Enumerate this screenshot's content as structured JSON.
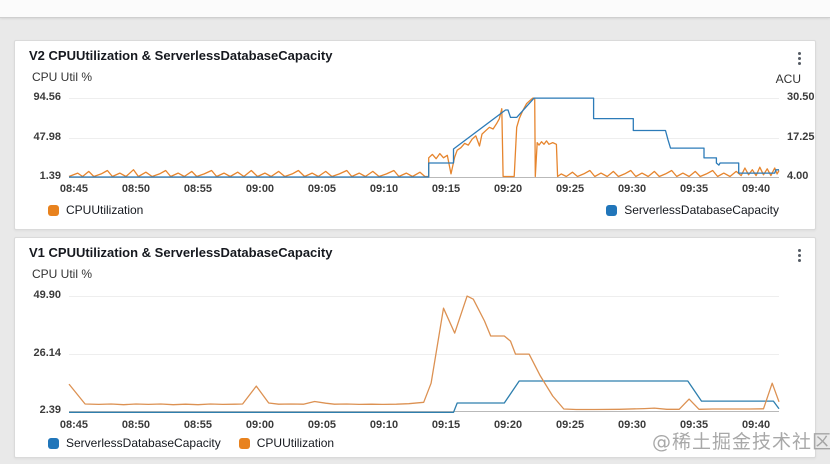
{
  "watermark": {
    "text": "@稀土掘金技术社区",
    "color": "#9a9a9a"
  },
  "colors": {
    "orange": "#e6852e",
    "blue": "#2c7bb8",
    "grid": "#eeeeee",
    "axis_line": "#b9b9b9"
  },
  "chart_data": [
    {
      "type": "line",
      "title": "V2 CPUUtilization & ServerlessDatabaseCapacity",
      "legend_layout": "split",
      "xlim": [
        -0.4,
        56.85
      ],
      "x_ticks": [
        {
          "t": 0,
          "label": "08:45"
        },
        {
          "t": 5,
          "label": "08:50"
        },
        {
          "t": 10,
          "label": "08:55"
        },
        {
          "t": 15,
          "label": "09:00"
        },
        {
          "t": 20,
          "label": "09:05"
        },
        {
          "t": 25,
          "label": "09:10"
        },
        {
          "t": 30,
          "label": "09:15"
        },
        {
          "t": 35,
          "label": "09:20"
        },
        {
          "t": 40,
          "label": "09:25"
        },
        {
          "t": 45,
          "label": "09:30"
        },
        {
          "t": 50,
          "label": "09:35"
        },
        {
          "t": 55,
          "label": "09:40"
        }
      ],
      "left_axis": {
        "label": "CPU Util %",
        "ticks": [
          "94.56",
          "47.98",
          "1.39"
        ],
        "lim": [
          0.2,
          100.5
        ]
      },
      "right_axis": {
        "label": "ACU",
        "ticks": [
          "30.50",
          "17.25",
          "4.00"
        ],
        "lim": [
          3.66,
          32.2
        ]
      },
      "legend": [
        {
          "label": "CPUUtilization",
          "color": "#e8821e"
        },
        {
          "label": "ServerlessDatabaseCapacity",
          "color": "#2176ba"
        }
      ],
      "series": [
        {
          "name": "CPUUtilization",
          "axis": "left",
          "color": "#e6852e",
          "points": [
            [
              -0.4,
              2
            ],
            [
              0.3,
              6
            ],
            [
              0.7,
              2
            ],
            [
              1.2,
              8
            ],
            [
              1.6,
              2
            ],
            [
              2.2,
              5
            ],
            [
              2.7,
              9
            ],
            [
              3.1,
              2
            ],
            [
              3.7,
              6
            ],
            [
              4.2,
              2
            ],
            [
              4.8,
              10
            ],
            [
              5.2,
              2
            ],
            [
              5.8,
              7
            ],
            [
              6.3,
              2
            ],
            [
              6.9,
              5
            ],
            [
              7.4,
              9
            ],
            [
              7.8,
              2
            ],
            [
              8.4,
              6
            ],
            [
              8.9,
              2
            ],
            [
              9.5,
              8
            ],
            [
              9.9,
              2
            ],
            [
              10.5,
              5
            ],
            [
              11.1,
              9
            ],
            [
              11.5,
              2
            ],
            [
              12.1,
              6
            ],
            [
              12.6,
              2
            ],
            [
              13.2,
              7
            ],
            [
              13.7,
              2
            ],
            [
              14.3,
              9
            ],
            [
              14.8,
              2
            ],
            [
              15.4,
              6
            ],
            [
              15.9,
              2
            ],
            [
              16.5,
              8
            ],
            [
              17.0,
              2
            ],
            [
              17.6,
              5
            ],
            [
              18.1,
              9
            ],
            [
              18.6,
              2
            ],
            [
              19.2,
              6
            ],
            [
              19.7,
              2
            ],
            [
              20.3,
              8
            ],
            [
              20.8,
              2
            ],
            [
              21.4,
              5
            ],
            [
              22.0,
              9
            ],
            [
              22.4,
              2
            ],
            [
              23.0,
              6
            ],
            [
              23.5,
              2
            ],
            [
              24.1,
              8
            ],
            [
              24.6,
              2
            ],
            [
              25.2,
              5
            ],
            [
              25.8,
              9
            ],
            [
              26.2,
              2
            ],
            [
              26.8,
              6
            ],
            [
              27.3,
              2
            ],
            [
              27.9,
              7
            ],
            [
              28.3,
              2
            ],
            [
              28.6,
              2
            ],
            [
              28.6,
              24
            ],
            [
              28.9,
              28
            ],
            [
              29.2,
              23
            ],
            [
              29.5,
              29
            ],
            [
              29.8,
              24
            ],
            [
              30.1,
              27
            ],
            [
              30.4,
              5
            ],
            [
              30.7,
              25
            ],
            [
              30.9,
              33
            ],
            [
              31.2,
              36
            ],
            [
              31.5,
              41
            ],
            [
              31.8,
              39
            ],
            [
              32.1,
              46
            ],
            [
              32.4,
              50
            ],
            [
              32.7,
              38
            ],
            [
              32.9,
              52
            ],
            [
              33.2,
              56
            ],
            [
              33.5,
              60
            ],
            [
              33.8,
              58
            ],
            [
              34.1,
              65
            ],
            [
              34.3,
              70
            ],
            [
              34.5,
              82
            ],
            [
              34.6,
              2
            ],
            [
              35.0,
              2
            ],
            [
              35.5,
              2
            ],
            [
              35.7,
              60
            ],
            [
              35.9,
              70
            ],
            [
              36.2,
              80
            ],
            [
              36.5,
              88
            ],
            [
              36.8,
              92
            ],
            [
              37.0,
              94.5
            ],
            [
              37.15,
              94.5
            ],
            [
              37.2,
              2
            ],
            [
              37.35,
              42
            ],
            [
              37.5,
              39
            ],
            [
              37.7,
              43
            ],
            [
              37.9,
              40
            ],
            [
              38.1,
              44
            ],
            [
              38.3,
              40
            ],
            [
              38.6,
              42
            ],
            [
              38.9,
              40
            ],
            [
              39.0,
              2
            ],
            [
              39.3,
              5
            ],
            [
              39.7,
              2
            ],
            [
              40.2,
              7
            ],
            [
              40.6,
              2
            ],
            [
              41.1,
              5
            ],
            [
              41.6,
              9
            ],
            [
              42.0,
              2
            ],
            [
              42.5,
              6
            ],
            [
              43.0,
              2
            ],
            [
              43.5,
              8
            ],
            [
              43.9,
              2
            ],
            [
              44.4,
              5
            ],
            [
              44.9,
              9
            ],
            [
              45.3,
              2
            ],
            [
              45.8,
              6
            ],
            [
              46.3,
              2
            ],
            [
              46.8,
              8
            ],
            [
              47.2,
              2
            ],
            [
              47.7,
              5
            ],
            [
              48.2,
              9
            ],
            [
              48.6,
              2
            ],
            [
              49.1,
              6
            ],
            [
              49.6,
              2
            ],
            [
              50.1,
              8
            ],
            [
              50.5,
              2
            ],
            [
              51.0,
              5
            ],
            [
              51.5,
              9
            ],
            [
              51.9,
              2
            ],
            [
              52.4,
              6
            ],
            [
              52.9,
              2
            ],
            [
              53.4,
              8
            ],
            [
              53.8,
              3
            ],
            [
              54.1,
              12
            ],
            [
              54.4,
              4
            ],
            [
              54.7,
              10
            ],
            [
              55.0,
              3
            ],
            [
              55.3,
              13
            ],
            [
              55.6,
              4
            ],
            [
              55.9,
              11
            ],
            [
              56.2,
              3
            ],
            [
              56.5,
              12
            ],
            [
              56.7,
              5
            ],
            [
              56.85,
              9
            ]
          ]
        },
        {
          "name": "ServerlessDatabaseCapacity",
          "axis": "right",
          "color": "#2c7bb8",
          "points": [
            [
              -0.4,
              4
            ],
            [
              28.6,
              4
            ],
            [
              28.6,
              8.7
            ],
            [
              30.6,
              8.7
            ],
            [
              30.6,
              13.4
            ],
            [
              34.8,
              26.5
            ],
            [
              35.0,
              26.5
            ],
            [
              35.2,
              24
            ],
            [
              35.7,
              24
            ],
            [
              37.1,
              30.5
            ],
            [
              41.9,
              30.5
            ],
            [
              41.9,
              23.6
            ],
            [
              45.1,
              23.6
            ],
            [
              45.1,
              19.6
            ],
            [
              47.7,
              19.6
            ],
            [
              47.9,
              16.5
            ],
            [
              48.1,
              13.7
            ],
            [
              50.8,
              13.7
            ],
            [
              50.8,
              10.4
            ],
            [
              51.8,
              10.4
            ],
            [
              51.8,
              8.7
            ],
            [
              52.0,
              8.0
            ],
            [
              52.1,
              8.7
            ],
            [
              53.6,
              8.7
            ],
            [
              53.6,
              5.3
            ],
            [
              56.5,
              5.3
            ],
            [
              56.6,
              6.4
            ],
            [
              56.85,
              6.4
            ]
          ]
        }
      ]
    },
    {
      "type": "line",
      "title": "V1 CPUUtilization & ServerlessDatabaseCapacity",
      "legend_layout": "row",
      "xlim": [
        -0.4,
        56.85
      ],
      "x_ticks": [
        {
          "t": 0,
          "label": "08:45"
        },
        {
          "t": 5,
          "label": "08:50"
        },
        {
          "t": 10,
          "label": "08:55"
        },
        {
          "t": 15,
          "label": "09:00"
        },
        {
          "t": 20,
          "label": "09:05"
        },
        {
          "t": 25,
          "label": "09:10"
        },
        {
          "t": 30,
          "label": "09:15"
        },
        {
          "t": 35,
          "label": "09:20"
        },
        {
          "t": 40,
          "label": "09:25"
        },
        {
          "t": 45,
          "label": "09:30"
        },
        {
          "t": 50,
          "label": "09:35"
        },
        {
          "t": 55,
          "label": "09:40"
        }
      ],
      "left_axis": {
        "label": "CPU Util %",
        "ticks": [
          "49.90",
          "26.14",
          "2.39"
        ],
        "lim": [
          1.15,
          52.0
        ]
      },
      "legend": [
        {
          "label": "ServerlessDatabaseCapacity",
          "color": "#2176ba"
        },
        {
          "label": "CPUUtilization",
          "color": "#e8821e"
        }
      ],
      "series": [
        {
          "name": "ServerlessDatabaseCapacity",
          "axis": "left",
          "color": "#2e7fae",
          "points": [
            [
              -0.4,
              1.8
            ],
            [
              30.6,
              1.8
            ],
            [
              30.9,
              5.7
            ],
            [
              34.7,
              5.7
            ],
            [
              35.9,
              14.8
            ],
            [
              49.5,
              14.8
            ],
            [
              50.6,
              6.5
            ],
            [
              56.4,
              6.5
            ],
            [
              56.85,
              3.3
            ]
          ]
        },
        {
          "name": "CPUUtilization",
          "axis": "left",
          "color": "#dc9152",
          "points": [
            [
              -0.4,
              13.5
            ],
            [
              0.9,
              5.3
            ],
            [
              2,
              5.1
            ],
            [
              3,
              5.3
            ],
            [
              4,
              5.0
            ],
            [
              5,
              5.3
            ],
            [
              6,
              5.1
            ],
            [
              7,
              5.3
            ],
            [
              8,
              5.0
            ],
            [
              9,
              5.2
            ],
            [
              10,
              5.0
            ],
            [
              11,
              5.3
            ],
            [
              12,
              5.1
            ],
            [
              13,
              5.2
            ],
            [
              13.6,
              5.3
            ],
            [
              14.7,
              12.7
            ],
            [
              15.7,
              5.7
            ],
            [
              16.5,
              5.2
            ],
            [
              17.5,
              5.3
            ],
            [
              18.5,
              5.2
            ],
            [
              19.4,
              6.3
            ],
            [
              20.3,
              5.6
            ],
            [
              21,
              5.2
            ],
            [
              22,
              5.3
            ],
            [
              23,
              5.1
            ],
            [
              24,
              5.2
            ],
            [
              25,
              5.1
            ],
            [
              26,
              5.2
            ],
            [
              27,
              5.4
            ],
            [
              28.2,
              6.0
            ],
            [
              28.8,
              13.9
            ],
            [
              29.8,
              44.9
            ],
            [
              30.7,
              34.6
            ],
            [
              31.7,
              49.9
            ],
            [
              32.2,
              48.6
            ],
            [
              33.1,
              39.6
            ],
            [
              33.6,
              33.4
            ],
            [
              34.7,
              33.4
            ],
            [
              35.2,
              31.3
            ],
            [
              35.6,
              25.9
            ],
            [
              36.7,
              25.9
            ],
            [
              37.6,
              16.9
            ],
            [
              38.6,
              8.6
            ],
            [
              39.5,
              3.2
            ],
            [
              40.5,
              3.0
            ],
            [
              42,
              3.0
            ],
            [
              44,
              3.1
            ],
            [
              46,
              3.4
            ],
            [
              46.8,
              3.6
            ],
            [
              47.8,
              3.1
            ],
            [
              48.8,
              3.1
            ],
            [
              49.6,
              7.3
            ],
            [
              50.4,
              3.1
            ],
            [
              51.5,
              3.2
            ],
            [
              53,
              3.2
            ],
            [
              54.5,
              3.2
            ],
            [
              55.6,
              3.3
            ],
            [
              56.3,
              13.9
            ],
            [
              56.85,
              6.2
            ]
          ]
        }
      ]
    }
  ]
}
